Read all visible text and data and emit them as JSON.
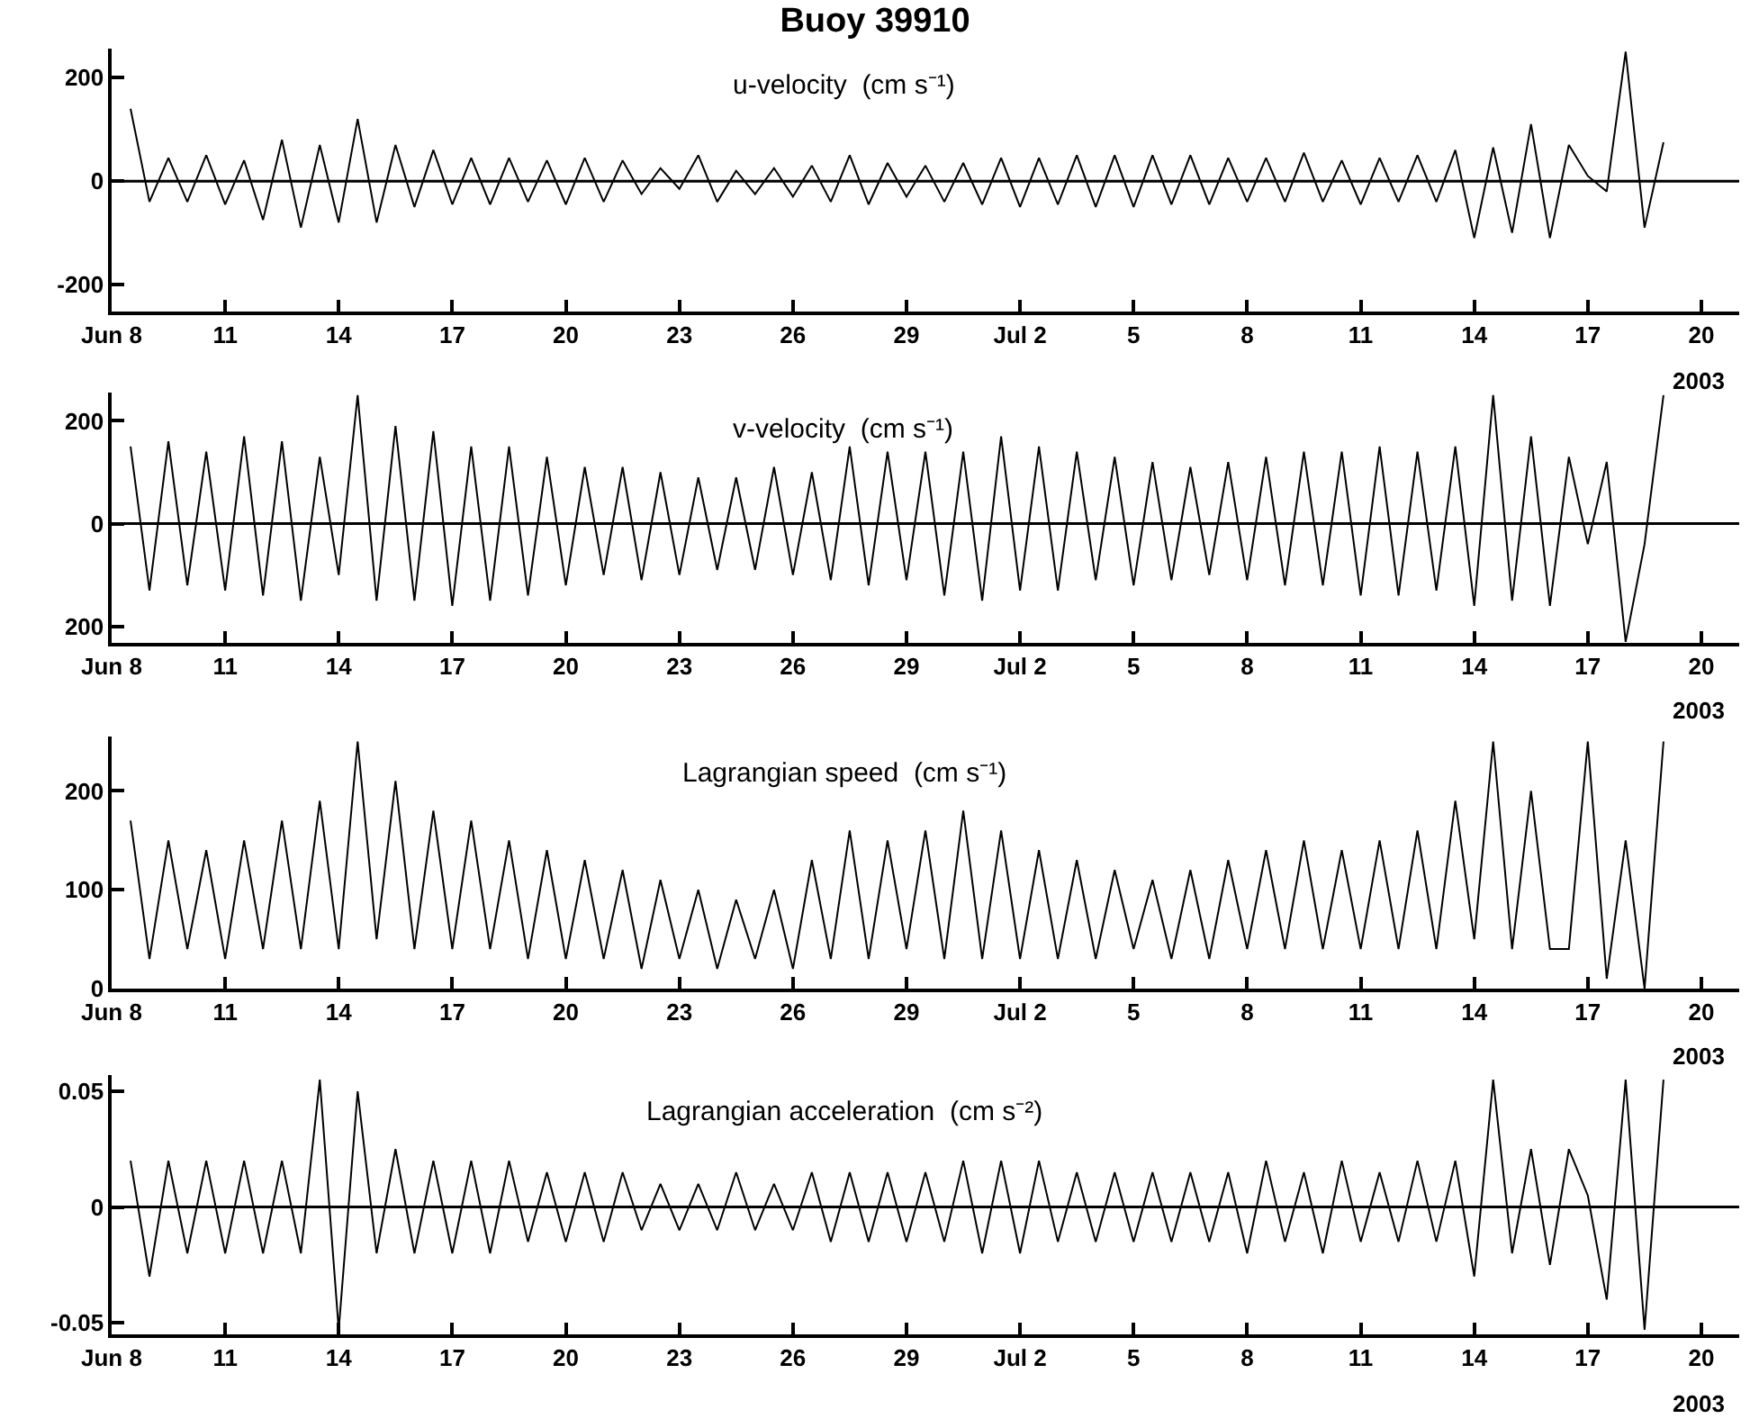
{
  "chart_data": [
    {
      "type": "line",
      "title": "Buoy 39910",
      "subtitle": "u-velocity  (cm s⁻¹)",
      "annotations": [
        "2003"
      ],
      "x": [
        "2003-06-08T12:00",
        "2003-06-09T00:00",
        "2003-06-09T12:00",
        "2003-06-10T00:00",
        "2003-06-10T12:00",
        "2003-06-11T00:00",
        "2003-06-11T12:00",
        "2003-06-12T00:00",
        "2003-06-12T12:00",
        "2003-06-13T00:00",
        "2003-06-13T12:00",
        "2003-06-14T00:00",
        "2003-06-14T12:00",
        "2003-06-15T00:00",
        "2003-06-15T12:00",
        "2003-06-16T00:00",
        "2003-06-16T12:00",
        "2003-06-17T00:00",
        "2003-06-17T12:00",
        "2003-06-18T00:00",
        "2003-06-18T12:00",
        "2003-06-19T00:00",
        "2003-06-19T12:00",
        "2003-06-20T00:00",
        "2003-06-20T12:00",
        "2003-06-21T00:00",
        "2003-06-21T12:00",
        "2003-06-22T00:00",
        "2003-06-22T12:00",
        "2003-06-23T00:00",
        "2003-06-23T12:00",
        "2003-06-24T00:00",
        "2003-06-24T12:00",
        "2003-06-25T00:00",
        "2003-06-25T12:00",
        "2003-06-26T00:00",
        "2003-06-26T12:00",
        "2003-06-27T00:00",
        "2003-06-27T12:00",
        "2003-06-28T00:00",
        "2003-06-28T12:00",
        "2003-06-29T00:00",
        "2003-06-29T12:00",
        "2003-06-30T00:00",
        "2003-06-30T12:00",
        "2003-07-01T00:00",
        "2003-07-01T12:00",
        "2003-07-02T00:00",
        "2003-07-02T12:00",
        "2003-07-03T00:00",
        "2003-07-03T12:00",
        "2003-07-04T00:00",
        "2003-07-04T12:00",
        "2003-07-05T00:00",
        "2003-07-05T12:00",
        "2003-07-06T00:00",
        "2003-07-06T12:00",
        "2003-07-07T00:00",
        "2003-07-07T12:00",
        "2003-07-08T00:00",
        "2003-07-08T12:00",
        "2003-07-09T00:00",
        "2003-07-09T12:00",
        "2003-07-10T00:00",
        "2003-07-10T12:00",
        "2003-07-11T00:00",
        "2003-07-11T12:00",
        "2003-07-12T00:00",
        "2003-07-12T12:00",
        "2003-07-13T00:00",
        "2003-07-13T12:00",
        "2003-07-14T00:00",
        "2003-07-14T12:00",
        "2003-07-15T00:00",
        "2003-07-15T12:00",
        "2003-07-16T00:00",
        "2003-07-16T12:00",
        "2003-07-17T00:00",
        "2003-07-17T12:00",
        "2003-07-18T00:00",
        "2003-07-18T12:00",
        "2003-07-19T00:00"
      ],
      "series": [
        {
          "color": "#000000",
          "values": [
            140,
            -40,
            45,
            -40,
            50,
            -45,
            40,
            -75,
            80,
            -90,
            70,
            -80,
            120,
            -80,
            70,
            -50,
            60,
            -45,
            45,
            -45,
            45,
            -40,
            40,
            -45,
            45,
            -40,
            40,
            -25,
            25,
            -15,
            50,
            -40,
            20,
            -25,
            25,
            -30,
            30,
            -40,
            50,
            -45,
            35,
            -30,
            30,
            -40,
            35,
            -45,
            45,
            -50,
            45,
            -45,
            50,
            -50,
            50,
            -50,
            50,
            -45,
            50,
            -45,
            45,
            -40,
            45,
            -40,
            55,
            -40,
            40,
            -45,
            45,
            -40,
            50,
            -40,
            60,
            -110,
            65,
            -100,
            110,
            -110,
            70,
            10,
            -20,
            250,
            -90,
            75
          ]
        }
      ],
      "xlim": [
        "2003-06-08",
        "2003-07-21"
      ],
      "xticks": [
        {
          "value": "2003-06-08",
          "label": "Jun 8"
        },
        {
          "value": "2003-06-11",
          "label": "11"
        },
        {
          "value": "2003-06-14",
          "label": "14"
        },
        {
          "value": "2003-06-17",
          "label": "17"
        },
        {
          "value": "2003-06-20",
          "label": "20"
        },
        {
          "value": "2003-06-23",
          "label": "23"
        },
        {
          "value": "2003-06-26",
          "label": "26"
        },
        {
          "value": "2003-06-29",
          "label": "29"
        },
        {
          "value": "2003-07-02",
          "label": "Jul 2"
        },
        {
          "value": "2003-07-05",
          "label": "5"
        },
        {
          "value": "2003-07-08",
          "label": "8"
        },
        {
          "value": "2003-07-11",
          "label": "11"
        },
        {
          "value": "2003-07-14",
          "label": "14"
        },
        {
          "value": "2003-07-17",
          "label": "17"
        },
        {
          "value": "2003-07-20",
          "label": "20"
        }
      ],
      "ylim": [
        -252,
        256
      ],
      "yticks": [
        200,
        0,
        -200
      ],
      "ref_lines": [
        {
          "axis": "y",
          "value": 0
        }
      ]
    },
    {
      "type": "line",
      "subtitle": "v-velocity  (cm s⁻¹)",
      "annotations": [
        "2003"
      ],
      "x": [
        "2003-06-08T12:00",
        "2003-06-09T00:00",
        "2003-06-09T12:00",
        "2003-06-10T00:00",
        "2003-06-10T12:00",
        "2003-06-11T00:00",
        "2003-06-11T12:00",
        "2003-06-12T00:00",
        "2003-06-12T12:00",
        "2003-06-13T00:00",
        "2003-06-13T12:00",
        "2003-06-14T00:00",
        "2003-06-14T12:00",
        "2003-06-15T00:00",
        "2003-06-15T12:00",
        "2003-06-16T00:00",
        "2003-06-16T12:00",
        "2003-06-17T00:00",
        "2003-06-17T12:00",
        "2003-06-18T00:00",
        "2003-06-18T12:00",
        "2003-06-19T00:00",
        "2003-06-19T12:00",
        "2003-06-20T00:00",
        "2003-06-20T12:00",
        "2003-06-21T00:00",
        "2003-06-21T12:00",
        "2003-06-22T00:00",
        "2003-06-22T12:00",
        "2003-06-23T00:00",
        "2003-06-23T12:00",
        "2003-06-24T00:00",
        "2003-06-24T12:00",
        "2003-06-25T00:00",
        "2003-06-25T12:00",
        "2003-06-26T00:00",
        "2003-06-26T12:00",
        "2003-06-27T00:00",
        "2003-06-27T12:00",
        "2003-06-28T00:00",
        "2003-06-28T12:00",
        "2003-06-29T00:00",
        "2003-06-29T12:00",
        "2003-06-30T00:00",
        "2003-06-30T12:00",
        "2003-07-01T00:00",
        "2003-07-01T12:00",
        "2003-07-02T00:00",
        "2003-07-02T12:00",
        "2003-07-03T00:00",
        "2003-07-03T12:00",
        "2003-07-04T00:00",
        "2003-07-04T12:00",
        "2003-07-05T00:00",
        "2003-07-05T12:00",
        "2003-07-06T00:00",
        "2003-07-06T12:00",
        "2003-07-07T00:00",
        "2003-07-07T12:00",
        "2003-07-08T00:00",
        "2003-07-08T12:00",
        "2003-07-09T00:00",
        "2003-07-09T12:00",
        "2003-07-10T00:00",
        "2003-07-10T12:00",
        "2003-07-11T00:00",
        "2003-07-11T12:00",
        "2003-07-12T00:00",
        "2003-07-12T12:00",
        "2003-07-13T00:00",
        "2003-07-13T12:00",
        "2003-07-14T00:00",
        "2003-07-14T12:00",
        "2003-07-15T00:00",
        "2003-07-15T12:00",
        "2003-07-16T00:00",
        "2003-07-16T12:00",
        "2003-07-17T00:00",
        "2003-07-17T12:00",
        "2003-07-18T00:00",
        "2003-07-18T12:00",
        "2003-07-19T00:00"
      ],
      "series": [
        {
          "color": "#000000",
          "values": [
            150,
            -130,
            160,
            -120,
            140,
            -130,
            170,
            -140,
            160,
            -150,
            130,
            -100,
            250,
            -150,
            190,
            -150,
            180,
            -160,
            150,
            -150,
            150,
            -140,
            130,
            -120,
            110,
            -100,
            110,
            -110,
            100,
            -100,
            90,
            -90,
            90,
            -90,
            110,
            -100,
            100,
            -110,
            150,
            -120,
            140,
            -110,
            140,
            -140,
            140,
            -150,
            170,
            -130,
            150,
            -130,
            140,
            -110,
            130,
            -120,
            120,
            -110,
            110,
            -100,
            120,
            -110,
            130,
            -120,
            140,
            -120,
            140,
            -140,
            150,
            -140,
            140,
            -130,
            150,
            -160,
            250,
            -150,
            170,
            -160,
            130,
            -40,
            120,
            -230,
            -40,
            250
          ]
        }
      ],
      "xlim": [
        "2003-06-08",
        "2003-07-21"
      ],
      "xticks": [
        {
          "value": "2003-06-08",
          "label": "Jun 8"
        },
        {
          "value": "2003-06-11",
          "label": "11"
        },
        {
          "value": "2003-06-14",
          "label": "14"
        },
        {
          "value": "2003-06-17",
          "label": "17"
        },
        {
          "value": "2003-06-20",
          "label": "20"
        },
        {
          "value": "2003-06-23",
          "label": "23"
        },
        {
          "value": "2003-06-26",
          "label": "26"
        },
        {
          "value": "2003-06-29",
          "label": "29"
        },
        {
          "value": "2003-07-02",
          "label": "Jul 2"
        },
        {
          "value": "2003-07-05",
          "label": "5"
        },
        {
          "value": "2003-07-08",
          "label": "8"
        },
        {
          "value": "2003-07-11",
          "label": "11"
        },
        {
          "value": "2003-07-14",
          "label": "14"
        },
        {
          "value": "2003-07-17",
          "label": "17"
        },
        {
          "value": "2003-07-20",
          "label": "20"
        }
      ],
      "ylim": [
        -232,
        255
      ],
      "yticks": [
        200,
        0,
        {
          "value": -200,
          "label": "200"
        }
      ],
      "ref_lines": [
        {
          "axis": "y",
          "value": 0
        }
      ]
    },
    {
      "type": "line",
      "subtitle": "Lagrangian speed  (cm s⁻¹)",
      "annotations": [
        "2003"
      ],
      "x": [
        "2003-06-08T12:00",
        "2003-06-09T00:00",
        "2003-06-09T12:00",
        "2003-06-10T00:00",
        "2003-06-10T12:00",
        "2003-06-11T00:00",
        "2003-06-11T12:00",
        "2003-06-12T00:00",
        "2003-06-12T12:00",
        "2003-06-13T00:00",
        "2003-06-13T12:00",
        "2003-06-14T00:00",
        "2003-06-14T12:00",
        "2003-06-15T00:00",
        "2003-06-15T12:00",
        "2003-06-16T00:00",
        "2003-06-16T12:00",
        "2003-06-17T00:00",
        "2003-06-17T12:00",
        "2003-06-18T00:00",
        "2003-06-18T12:00",
        "2003-06-19T00:00",
        "2003-06-19T12:00",
        "2003-06-20T00:00",
        "2003-06-20T12:00",
        "2003-06-21T00:00",
        "2003-06-21T12:00",
        "2003-06-22T00:00",
        "2003-06-22T12:00",
        "2003-06-23T00:00",
        "2003-06-23T12:00",
        "2003-06-24T00:00",
        "2003-06-24T12:00",
        "2003-06-25T00:00",
        "2003-06-25T12:00",
        "2003-06-26T00:00",
        "2003-06-26T12:00",
        "2003-06-27T00:00",
        "2003-06-27T12:00",
        "2003-06-28T00:00",
        "2003-06-28T12:00",
        "2003-06-29T00:00",
        "2003-06-29T12:00",
        "2003-06-30T00:00",
        "2003-06-30T12:00",
        "2003-07-01T00:00",
        "2003-07-01T12:00",
        "2003-07-02T00:00",
        "2003-07-02T12:00",
        "2003-07-03T00:00",
        "2003-07-03T12:00",
        "2003-07-04T00:00",
        "2003-07-04T12:00",
        "2003-07-05T00:00",
        "2003-07-05T12:00",
        "2003-07-06T00:00",
        "2003-07-06T12:00",
        "2003-07-07T00:00",
        "2003-07-07T12:00",
        "2003-07-08T00:00",
        "2003-07-08T12:00",
        "2003-07-09T00:00",
        "2003-07-09T12:00",
        "2003-07-10T00:00",
        "2003-07-10T12:00",
        "2003-07-11T00:00",
        "2003-07-11T12:00",
        "2003-07-12T00:00",
        "2003-07-12T12:00",
        "2003-07-13T00:00",
        "2003-07-13T12:00",
        "2003-07-14T00:00",
        "2003-07-14T12:00",
        "2003-07-15T00:00",
        "2003-07-15T12:00",
        "2003-07-16T00:00",
        "2003-07-16T12:00",
        "2003-07-17T00:00",
        "2003-07-17T12:00",
        "2003-07-18T00:00",
        "2003-07-18T12:00",
        "2003-07-19T00:00"
      ],
      "series": [
        {
          "color": "#000000",
          "values": [
            170,
            30,
            150,
            40,
            140,
            30,
            150,
            40,
            170,
            40,
            190,
            40,
            250,
            50,
            210,
            40,
            180,
            40,
            170,
            40,
            150,
            30,
            140,
            30,
            130,
            30,
            120,
            20,
            110,
            30,
            100,
            20,
            90,
            30,
            100,
            20,
            130,
            30,
            160,
            30,
            150,
            40,
            160,
            30,
            180,
            30,
            160,
            30,
            140,
            30,
            130,
            30,
            120,
            40,
            110,
            30,
            120,
            30,
            130,
            40,
            140,
            40,
            150,
            40,
            140,
            40,
            150,
            40,
            160,
            40,
            190,
            50,
            250,
            40,
            200,
            40,
            40,
            250,
            10,
            150,
            0,
            250
          ]
        }
      ],
      "xlim": [
        "2003-06-08",
        "2003-07-21"
      ],
      "xticks": [
        {
          "value": "2003-06-08",
          "label": "Jun 8"
        },
        {
          "value": "2003-06-11",
          "label": "11"
        },
        {
          "value": "2003-06-14",
          "label": "14"
        },
        {
          "value": "2003-06-17",
          "label": "17"
        },
        {
          "value": "2003-06-20",
          "label": "20"
        },
        {
          "value": "2003-06-23",
          "label": "23"
        },
        {
          "value": "2003-06-26",
          "label": "26"
        },
        {
          "value": "2003-06-29",
          "label": "29"
        },
        {
          "value": "2003-07-02",
          "label": "Jul 2"
        },
        {
          "value": "2003-07-05",
          "label": "5"
        },
        {
          "value": "2003-07-08",
          "label": "8"
        },
        {
          "value": "2003-07-11",
          "label": "11"
        },
        {
          "value": "2003-07-14",
          "label": "14"
        },
        {
          "value": "2003-07-17",
          "label": "17"
        },
        {
          "value": "2003-07-20",
          "label": "20"
        }
      ],
      "ylim": [
        0,
        255
      ],
      "yticks": [
        200,
        100,
        0
      ]
    },
    {
      "type": "line",
      "subtitle": "Lagrangian acceleration  (cm s⁻²)",
      "annotations": [
        "2003"
      ],
      "x": [
        "2003-06-08T12:00",
        "2003-06-09T00:00",
        "2003-06-09T12:00",
        "2003-06-10T00:00",
        "2003-06-10T12:00",
        "2003-06-11T00:00",
        "2003-06-11T12:00",
        "2003-06-12T00:00",
        "2003-06-12T12:00",
        "2003-06-13T00:00",
        "2003-06-13T12:00",
        "2003-06-14T00:00",
        "2003-06-14T12:00",
        "2003-06-15T00:00",
        "2003-06-15T12:00",
        "2003-06-16T00:00",
        "2003-06-16T12:00",
        "2003-06-17T00:00",
        "2003-06-17T12:00",
        "2003-06-18T00:00",
        "2003-06-18T12:00",
        "2003-06-19T00:00",
        "2003-06-19T12:00",
        "2003-06-20T00:00",
        "2003-06-20T12:00",
        "2003-06-21T00:00",
        "2003-06-21T12:00",
        "2003-06-22T00:00",
        "2003-06-22T12:00",
        "2003-06-23T00:00",
        "2003-06-23T12:00",
        "2003-06-24T00:00",
        "2003-06-24T12:00",
        "2003-06-25T00:00",
        "2003-06-25T12:00",
        "2003-06-26T00:00",
        "2003-06-26T12:00",
        "2003-06-27T00:00",
        "2003-06-27T12:00",
        "2003-06-28T00:00",
        "2003-06-28T12:00",
        "2003-06-29T00:00",
        "2003-06-29T12:00",
        "2003-06-30T00:00",
        "2003-06-30T12:00",
        "2003-07-01T00:00",
        "2003-07-01T12:00",
        "2003-07-02T00:00",
        "2003-07-02T12:00",
        "2003-07-03T00:00",
        "2003-07-03T12:00",
        "2003-07-04T00:00",
        "2003-07-04T12:00",
        "2003-07-05T00:00",
        "2003-07-05T12:00",
        "2003-07-06T00:00",
        "2003-07-06T12:00",
        "2003-07-07T00:00",
        "2003-07-07T12:00",
        "2003-07-08T00:00",
        "2003-07-08T12:00",
        "2003-07-09T00:00",
        "2003-07-09T12:00",
        "2003-07-10T00:00",
        "2003-07-10T12:00",
        "2003-07-11T00:00",
        "2003-07-11T12:00",
        "2003-07-12T00:00",
        "2003-07-12T12:00",
        "2003-07-13T00:00",
        "2003-07-13T12:00",
        "2003-07-14T00:00",
        "2003-07-14T12:00",
        "2003-07-15T00:00",
        "2003-07-15T12:00",
        "2003-07-16T00:00",
        "2003-07-16T12:00",
        "2003-07-17T00:00",
        "2003-07-17T12:00",
        "2003-07-18T00:00",
        "2003-07-18T12:00",
        "2003-07-19T00:00"
      ],
      "series": [
        {
          "color": "#000000",
          "values": [
            0.02,
            -0.03,
            0.02,
            -0.02,
            0.02,
            -0.02,
            0.02,
            -0.02,
            0.02,
            -0.02,
            0.055,
            -0.053,
            0.05,
            -0.02,
            0.025,
            -0.02,
            0.02,
            -0.02,
            0.02,
            -0.02,
            0.02,
            -0.015,
            0.015,
            -0.015,
            0.015,
            -0.015,
            0.015,
            -0.01,
            0.01,
            -0.01,
            0.01,
            -0.01,
            0.015,
            -0.01,
            0.01,
            -0.01,
            0.015,
            -0.015,
            0.015,
            -0.015,
            0.015,
            -0.015,
            0.015,
            -0.015,
            0.02,
            -0.02,
            0.02,
            -0.02,
            0.02,
            -0.015,
            0.015,
            -0.015,
            0.015,
            -0.015,
            0.015,
            -0.015,
            0.015,
            -0.015,
            0.015,
            -0.02,
            0.02,
            -0.015,
            0.015,
            -0.02,
            0.02,
            -0.015,
            0.015,
            -0.015,
            0.02,
            -0.015,
            0.02,
            -0.03,
            0.055,
            -0.02,
            0.025,
            -0.025,
            0.025,
            0.005,
            -0.04,
            0.055,
            -0.053,
            0.055
          ]
        }
      ],
      "xlim": [
        "2003-06-08",
        "2003-07-21"
      ],
      "xticks": [
        {
          "value": "2003-06-08",
          "label": "Jun 8"
        },
        {
          "value": "2003-06-11",
          "label": "11"
        },
        {
          "value": "2003-06-14",
          "label": "14"
        },
        {
          "value": "2003-06-17",
          "label": "17"
        },
        {
          "value": "2003-06-20",
          "label": "20"
        },
        {
          "value": "2003-06-23",
          "label": "23"
        },
        {
          "value": "2003-06-26",
          "label": "26"
        },
        {
          "value": "2003-06-29",
          "label": "29"
        },
        {
          "value": "2003-07-02",
          "label": "Jul 2"
        },
        {
          "value": "2003-07-05",
          "label": "5"
        },
        {
          "value": "2003-07-08",
          "label": "8"
        },
        {
          "value": "2003-07-11",
          "label": "11"
        },
        {
          "value": "2003-07-14",
          "label": "14"
        },
        {
          "value": "2003-07-17",
          "label": "17"
        },
        {
          "value": "2003-07-20",
          "label": "20"
        }
      ],
      "ylim": [
        -0.055,
        0.057
      ],
      "yticks": [
        0.05,
        0,
        -0.05
      ],
      "ref_lines": [
        {
          "axis": "y",
          "value": 0
        }
      ]
    }
  ]
}
